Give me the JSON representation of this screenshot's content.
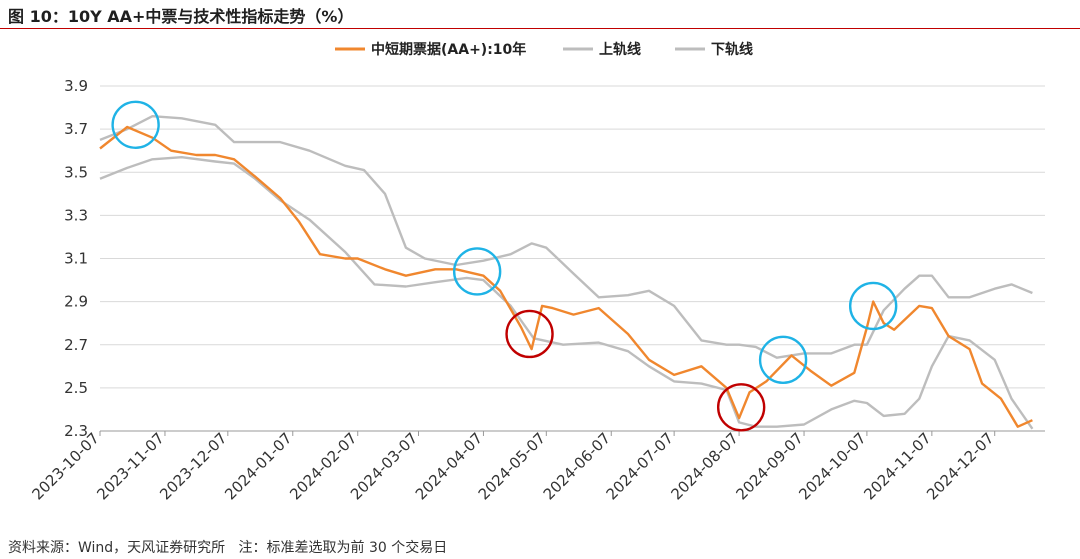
{
  "title": "图 10：10Y AA+中票与技术性指标走势（%）",
  "source": "资料来源：Wind，天风证券研究所   注：标准差选取为前 30 个交易日",
  "colors": {
    "main": "#f0872e",
    "upper": "#bdbdbd",
    "lower": "#bdbdbd",
    "grid": "#d9d9d9",
    "circle_blue": "#1fb3e6",
    "circle_red": "#c00000"
  },
  "chart_data": {
    "type": "line",
    "title": "",
    "xlabel": "",
    "ylabel": "",
    "ylim": [
      2.3,
      3.9
    ],
    "y_ticks": [
      "2.3",
      "2.5",
      "2.7",
      "2.9",
      "3.1",
      "3.3",
      "3.5",
      "3.7",
      "3.9"
    ],
    "x_ticks": [
      "2023-10-07",
      "2023-11-07",
      "2023-12-07",
      "2024-01-07",
      "2024-02-07",
      "2024-03-07",
      "2024-04-07",
      "2024-05-07",
      "2024-06-07",
      "2024-07-07",
      "2024-08-07",
      "2024-09-07",
      "2024-10-07",
      "2024-11-07",
      "2024-12-07"
    ],
    "grid": "horizontal",
    "legend": "top-center",
    "series": [
      {
        "name": "中短期票据(AA+):10年",
        "x": [
          "2023-10-07",
          "2023-10-20",
          "2023-11-01",
          "2023-11-10",
          "2023-11-22",
          "2023-12-01",
          "2023-12-10",
          "2023-12-20",
          "2024-01-01",
          "2024-01-10",
          "2024-01-20",
          "2024-02-01",
          "2024-02-07",
          "2024-02-20",
          "2024-03-01",
          "2024-03-15",
          "2024-03-25",
          "2024-04-07",
          "2024-04-15",
          "2024-04-25",
          "2024-04-30",
          "2024-05-05",
          "2024-05-10",
          "2024-05-20",
          "2024-06-01",
          "2024-06-15",
          "2024-06-25",
          "2024-07-07",
          "2024-07-20",
          "2024-08-01",
          "2024-08-07",
          "2024-08-12",
          "2024-08-20",
          "2024-09-01",
          "2024-09-10",
          "2024-09-20",
          "2024-10-01",
          "2024-10-07",
          "2024-10-10",
          "2024-10-15",
          "2024-10-20",
          "2024-11-01",
          "2024-11-07",
          "2024-11-15",
          "2024-11-25",
          "2024-12-01",
          "2024-12-10",
          "2024-12-18",
          "2024-12-25"
        ],
        "y": [
          3.61,
          3.71,
          3.66,
          3.6,
          3.58,
          3.58,
          3.56,
          3.48,
          3.38,
          3.27,
          3.12,
          3.1,
          3.1,
          3.05,
          3.02,
          3.05,
          3.05,
          3.02,
          2.95,
          2.78,
          2.68,
          2.88,
          2.87,
          2.84,
          2.87,
          2.75,
          2.63,
          2.56,
          2.6,
          2.5,
          2.36,
          2.48,
          2.53,
          2.65,
          2.58,
          2.51,
          2.57,
          2.78,
          2.9,
          2.8,
          2.77,
          2.88,
          2.87,
          2.74,
          2.68,
          2.52,
          2.45,
          2.32,
          2.35
        ]
      },
      {
        "name": "上轨线",
        "x": [
          "2023-10-07",
          "2023-10-20",
          "2023-11-01",
          "2023-11-15",
          "2023-12-01",
          "2023-12-10",
          "2023-12-20",
          "2024-01-01",
          "2024-01-15",
          "2024-02-01",
          "2024-02-10",
          "2024-02-20",
          "2024-03-01",
          "2024-03-10",
          "2024-03-25",
          "2024-04-07",
          "2024-04-20",
          "2024-04-30",
          "2024-05-07",
          "2024-05-20",
          "2024-06-01",
          "2024-06-15",
          "2024-06-25",
          "2024-07-07",
          "2024-07-20",
          "2024-08-01",
          "2024-08-07",
          "2024-08-15",
          "2024-08-25",
          "2024-09-07",
          "2024-09-20",
          "2024-10-01",
          "2024-10-07",
          "2024-10-15",
          "2024-10-25",
          "2024-11-01",
          "2024-11-07",
          "2024-11-15",
          "2024-11-25",
          "2024-12-07",
          "2024-12-15",
          "2024-12-25"
        ],
        "y": [
          3.65,
          3.7,
          3.76,
          3.75,
          3.72,
          3.64,
          3.64,
          3.64,
          3.6,
          3.53,
          3.51,
          3.4,
          3.15,
          3.1,
          3.07,
          3.09,
          3.12,
          3.17,
          3.15,
          3.03,
          2.92,
          2.93,
          2.95,
          2.88,
          2.72,
          2.7,
          2.7,
          2.69,
          2.64,
          2.66,
          2.66,
          2.7,
          2.7,
          2.86,
          2.96,
          3.02,
          3.02,
          2.92,
          2.92,
          2.96,
          2.98,
          2.94
        ]
      },
      {
        "name": "下轨线",
        "x": [
          "2023-10-07",
          "2023-10-20",
          "2023-11-01",
          "2023-11-15",
          "2023-12-01",
          "2023-12-10",
          "2023-12-20",
          "2024-01-01",
          "2024-01-15",
          "2024-02-01",
          "2024-02-15",
          "2024-03-01",
          "2024-03-15",
          "2024-03-30",
          "2024-04-07",
          "2024-04-20",
          "2024-05-01",
          "2024-05-15",
          "2024-06-01",
          "2024-06-15",
          "2024-06-25",
          "2024-07-07",
          "2024-07-20",
          "2024-08-01",
          "2024-08-07",
          "2024-08-15",
          "2024-08-25",
          "2024-09-07",
          "2024-09-20",
          "2024-10-01",
          "2024-10-07",
          "2024-10-15",
          "2024-10-25",
          "2024-11-01",
          "2024-11-07",
          "2024-11-15",
          "2024-11-25",
          "2024-12-07",
          "2024-12-15",
          "2024-12-25"
        ],
        "y": [
          3.47,
          3.52,
          3.56,
          3.57,
          3.55,
          3.54,
          3.47,
          3.37,
          3.28,
          3.13,
          2.98,
          2.97,
          2.99,
          3.01,
          3.0,
          2.88,
          2.73,
          2.7,
          2.71,
          2.67,
          2.6,
          2.53,
          2.52,
          2.49,
          2.34,
          2.32,
          2.32,
          2.33,
          2.4,
          2.44,
          2.43,
          2.37,
          2.38,
          2.45,
          2.6,
          2.74,
          2.72,
          2.63,
          2.45,
          2.31
        ]
      }
    ],
    "annotations": [
      {
        "type": "circle",
        "color": "blue",
        "x": "2023-10-24",
        "y": 3.72
      },
      {
        "type": "circle",
        "color": "blue",
        "x": "2024-04-04",
        "y": 3.04
      },
      {
        "type": "circle",
        "color": "red",
        "x": "2024-04-29",
        "y": 2.75
      },
      {
        "type": "circle",
        "color": "red",
        "x": "2024-08-08",
        "y": 2.41
      },
      {
        "type": "circle",
        "color": "blue",
        "x": "2024-08-28",
        "y": 2.63
      },
      {
        "type": "circle",
        "color": "blue",
        "x": "2024-10-10",
        "y": 2.88
      }
    ]
  }
}
